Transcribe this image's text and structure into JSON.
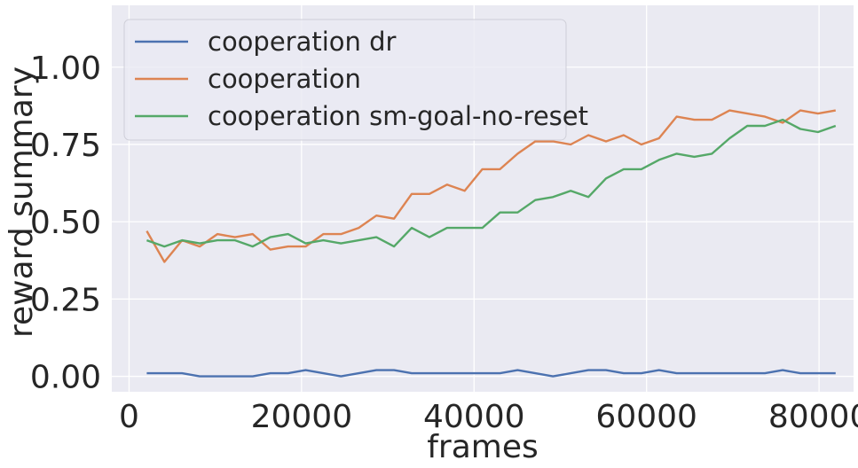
{
  "chart_data": {
    "type": "line",
    "xlabel": "frames",
    "ylabel": "reward summary",
    "xlim": [
      -2000,
      84000
    ],
    "ylim": [
      -0.05,
      1.2
    ],
    "xticks": [
      0,
      20000,
      40000,
      60000,
      80000
    ],
    "xtick_labels": [
      "0",
      "20000",
      "40000",
      "60000",
      "80000"
    ],
    "yticks": [
      0.0,
      0.25,
      0.5,
      0.75,
      1.0
    ],
    "ytick_labels": [
      "0.00",
      "0.25",
      "0.50",
      "0.75",
      "1.00"
    ],
    "grid": true,
    "legend_position": "top-left",
    "background_color": "#eaeaf2",
    "x": [
      2048,
      4096,
      6144,
      8192,
      10240,
      12288,
      14336,
      16384,
      18432,
      20480,
      22528,
      24576,
      26624,
      28672,
      30720,
      32768,
      34816,
      36864,
      38912,
      40960,
      43008,
      45056,
      47104,
      49152,
      51200,
      53248,
      55296,
      57344,
      59392,
      61440,
      63488,
      65536,
      67584,
      69632,
      71680,
      73728,
      75776,
      77824,
      79872,
      81920
    ],
    "series": [
      {
        "name": "cooperation dr",
        "color": "#4c72b0",
        "values": [
          0.01,
          0.01,
          0.01,
          0.0,
          0.0,
          0.0,
          0.0,
          0.01,
          0.01,
          0.02,
          0.01,
          0.0,
          0.01,
          0.02,
          0.02,
          0.01,
          0.01,
          0.01,
          0.01,
          0.01,
          0.01,
          0.02,
          0.01,
          0.0,
          0.01,
          0.02,
          0.02,
          0.01,
          0.01,
          0.02,
          0.01,
          0.01,
          0.01,
          0.01,
          0.01,
          0.01,
          0.02,
          0.01,
          0.01,
          0.01
        ]
      },
      {
        "name": "cooperation",
        "color": "#dd8452",
        "values": [
          0.47,
          0.37,
          0.44,
          0.42,
          0.46,
          0.45,
          0.46,
          0.41,
          0.42,
          0.42,
          0.46,
          0.46,
          0.48,
          0.52,
          0.51,
          0.59,
          0.59,
          0.62,
          0.6,
          0.67,
          0.67,
          0.72,
          0.76,
          0.76,
          0.75,
          0.78,
          0.76,
          0.78,
          0.75,
          0.77,
          0.84,
          0.83,
          0.83,
          0.86,
          0.85,
          0.84,
          0.82,
          0.86,
          0.85,
          0.86
        ]
      },
      {
        "name": "cooperation sm-goal-no-reset",
        "color": "#55a868",
        "values": [
          0.44,
          0.42,
          0.44,
          0.43,
          0.44,
          0.44,
          0.42,
          0.45,
          0.46,
          0.43,
          0.44,
          0.43,
          0.44,
          0.45,
          0.42,
          0.48,
          0.45,
          0.48,
          0.48,
          0.48,
          0.53,
          0.53,
          0.57,
          0.58,
          0.6,
          0.58,
          0.64,
          0.67,
          0.67,
          0.7,
          0.72,
          0.71,
          0.72,
          0.77,
          0.81,
          0.81,
          0.83,
          0.8,
          0.79,
          0.81
        ]
      }
    ]
  }
}
